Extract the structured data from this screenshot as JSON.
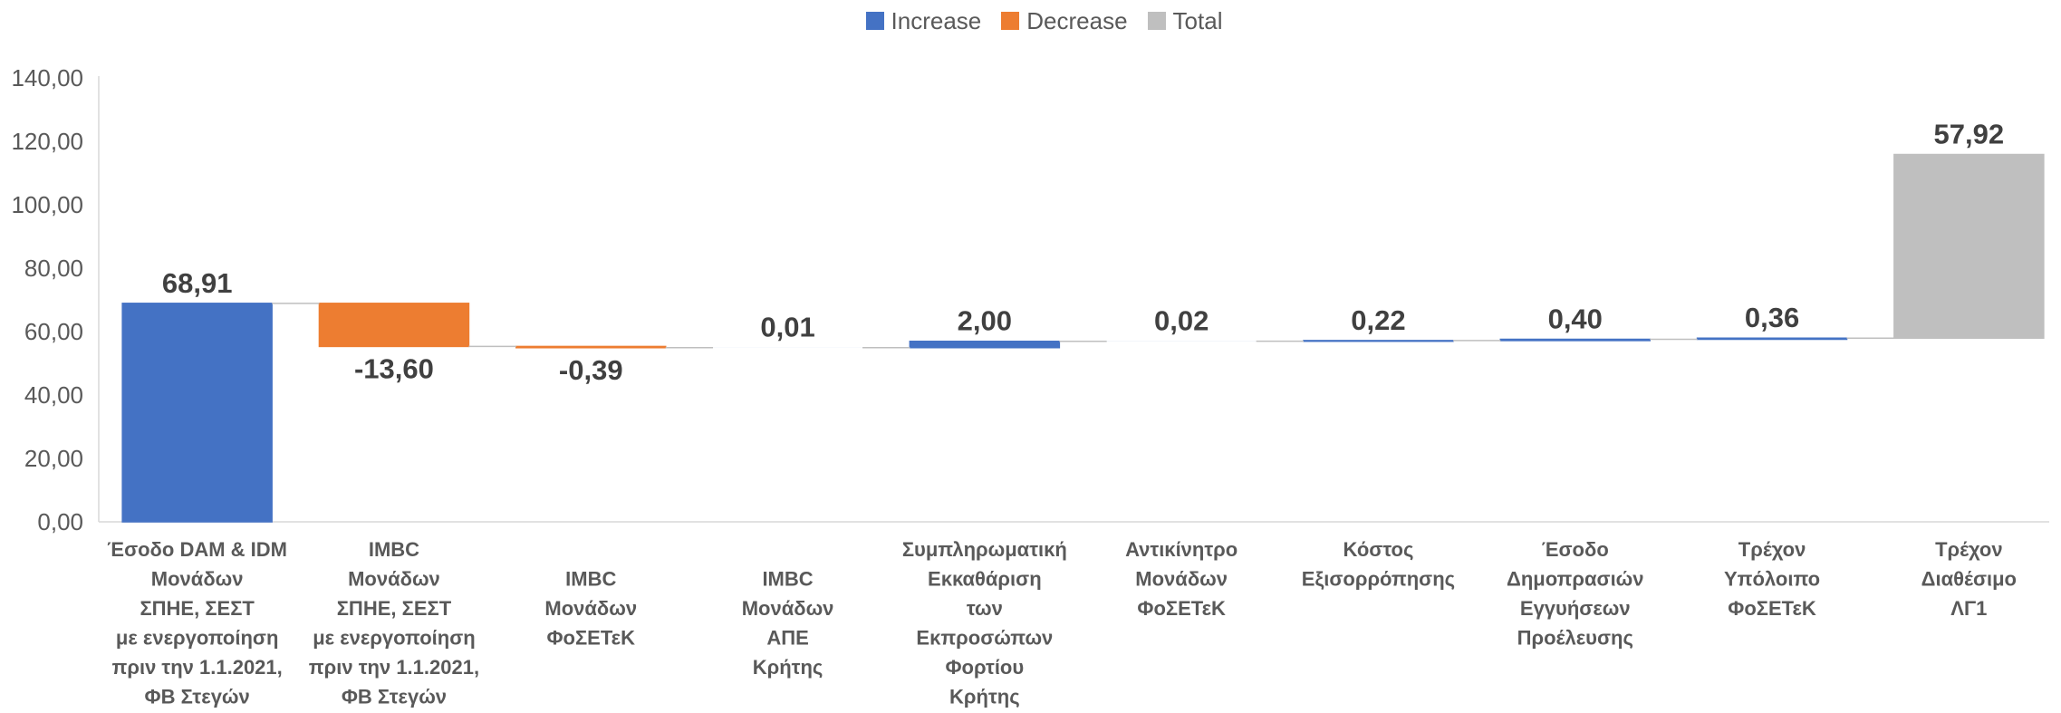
{
  "chart_data": {
    "type": "bar",
    "subtype": "waterfall",
    "categories": [
      [
        "Έσοδο DAM & IDM",
        "Μονάδων",
        "ΣΠΗΕ, ΣΕΣΤ",
        "με ενεργοποίηση",
        "πριν την 1.1.2021,",
        "ΦΒ Στεγών"
      ],
      [
        "IMBC",
        "Μονάδων",
        "ΣΠΗΕ, ΣΕΣΤ",
        "με ενεργοποίηση",
        "πριν την 1.1.2021,",
        "ΦΒ Στεγών"
      ],
      [
        "IMBC",
        "Μονάδων",
        "ΦοΣΕΤεΚ"
      ],
      [
        "IMBC",
        "Μονάδων",
        "ΑΠΕ",
        "Κρήτης"
      ],
      [
        "Συμπληρωματική",
        "Εκκαθάριση",
        "των",
        "Εκπροσώπων",
        "Φορτίου",
        "Κρήτης"
      ],
      [
        "Αντικίνητρο",
        "Μονάδων",
        "ΦοΣΕΤεΚ"
      ],
      [
        "Κόστος",
        "Εξισορρόπησης"
      ],
      [
        "Έσοδο",
        "Δημοπρασιών",
        "Εγγυήσεων",
        "Προέλευσης"
      ],
      [
        "Τρέχον",
        "Υπόλοιπο",
        "ΦοΣΕΤεΚ"
      ],
      [
        "Τρέχον",
        "Διαθέσιμο",
        "ΛΓ1"
      ]
    ],
    "values": [
      68.91,
      -13.6,
      -0.39,
      0.01,
      2.0,
      0.02,
      0.22,
      0.4,
      0.36,
      57.92
    ],
    "data_labels": [
      "68,91",
      "-13,60",
      "-0,39",
      "0,01",
      "2,00",
      "0,02",
      "0,22",
      "0,40",
      "0,36",
      "57,92"
    ],
    "bar_colors": [
      "#4472C4",
      "#ED7D31",
      "#ED7D31",
      "#4472C4",
      "#4472C4",
      "#4472C4",
      "#4472C4",
      "#4472C4",
      "#4472C4",
      "#BFBFBF"
    ],
    "legend": [
      {
        "label": "Increase",
        "color": "#4472C4"
      },
      {
        "label": "Decrease",
        "color": "#ED7D31"
      },
      {
        "label": "Total",
        "color": "#BFBFBF"
      }
    ],
    "legend_position": "top",
    "ylim": [
      0,
      140
    ],
    "yticks": [
      0,
      20,
      40,
      60,
      80,
      100,
      120,
      140
    ],
    "ytick_labels": [
      "0,00",
      "20,00",
      "40,00",
      "60,00",
      "80,00",
      "100,00",
      "120,00",
      "140,00"
    ],
    "grid": false,
    "connector_lines": true
  }
}
